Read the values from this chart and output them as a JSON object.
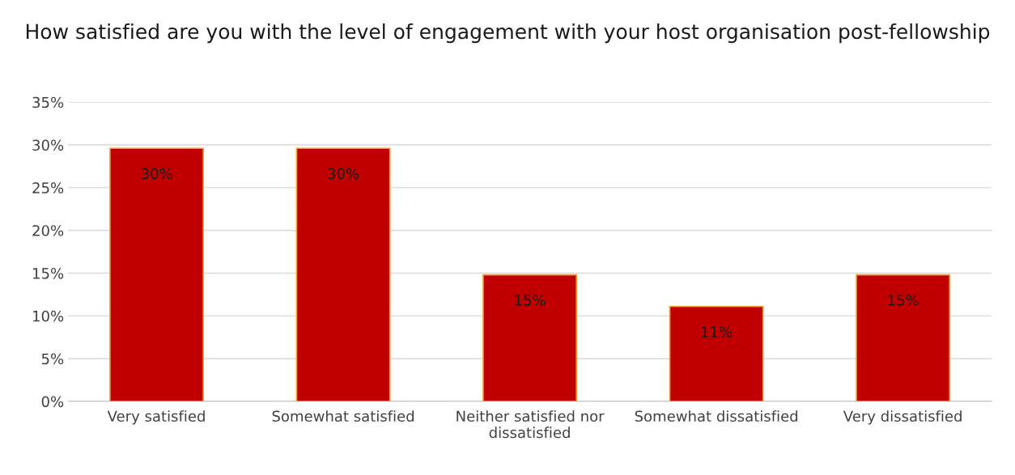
{
  "chart_data": {
    "type": "bar",
    "title": "How satisfied are you with the level of engagement with your host organisation post-fellowship",
    "categories": [
      "Very satisfied",
      "Somewhat satisfied",
      "Neither satisfied nor\ndissatisfied",
      "Somewhat dissatisfied",
      "Very dissatisfied"
    ],
    "values": [
      29.6,
      29.6,
      14.8,
      11.1,
      14.8
    ],
    "value_labels": [
      "30%",
      "30%",
      "15%",
      "11%",
      "15%"
    ],
    "color": "#c00000",
    "ylim": [
      0,
      35
    ],
    "yticks": [
      {
        "value": 0,
        "label": "0%"
      },
      {
        "value": 5,
        "label": "5%"
      },
      {
        "value": 10,
        "label": "10%"
      },
      {
        "value": 15,
        "label": "15%"
      },
      {
        "value": 20,
        "label": "20%"
      },
      {
        "value": 25,
        "label": "25%"
      },
      {
        "value": 30,
        "label": "30%"
      },
      {
        "value": 35,
        "label": "35%"
      }
    ],
    "grid": "y"
  }
}
